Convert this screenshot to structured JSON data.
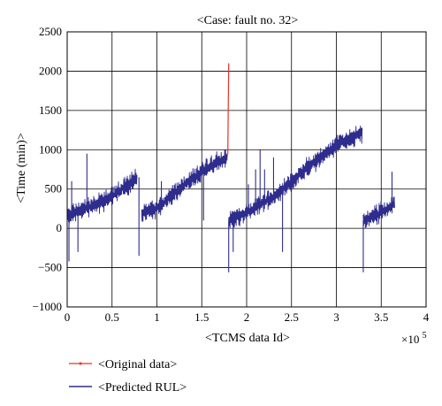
{
  "chart_data": {
    "type": "line",
    "title": "<Case: fault no. 32>",
    "xlabel": "<TCMS data Id>",
    "ylabel": "<Time (min)>",
    "x_multiplier_label": "×10",
    "x_multiplier_exp": "5",
    "xlim": [
      0,
      4
    ],
    "ylim": [
      -1000,
      2500
    ],
    "x_ticks": [
      0,
      0.5,
      1,
      1.5,
      2,
      2.5,
      3,
      3.5,
      4
    ],
    "x_tick_labels": [
      "0",
      "0.5",
      "1",
      "1.5",
      "2",
      "2.5",
      "3",
      "3.5",
      "4"
    ],
    "y_ticks": [
      -1000,
      -500,
      0,
      500,
      1000,
      1500,
      2000,
      2500
    ],
    "y_tick_labels": [
      "−1000",
      "−500",
      "0",
      "500",
      "1000",
      "1500",
      "2000",
      "2500"
    ],
    "grid": true,
    "legend_position": "bottom-left, below plot",
    "series": [
      {
        "name": "<Original data>",
        "color": "#e8312a",
        "segments": [
          {
            "x": [
              0.0,
              0.2,
              0.5,
              0.78
            ],
            "y": [
              150,
              250,
              400,
              650
            ]
          },
          {
            "x": [
              0.83,
              1.0,
              1.3,
              1.6,
              1.79
            ],
            "y": [
              200,
              250,
              550,
              800,
              950
            ]
          },
          {
            "x": [
              1.79,
              1.8
            ],
            "y": [
              950,
              2100
            ]
          },
          {
            "x": [
              1.8,
              2.0,
              2.3,
              2.7,
              3.0,
              3.29
            ],
            "y": [
              100,
              200,
              400,
              800,
              1050,
              1250
            ]
          },
          {
            "x": [
              3.3,
              3.5,
              3.65
            ],
            "y": [
              100,
              200,
              320
            ]
          }
        ]
      },
      {
        "name": "<Predicted RUL>",
        "color": "#2e2c8c",
        "segments": [
          {
            "x": [
              0.0,
              0.2,
              0.5,
              0.78
            ],
            "y": [
              150,
              250,
              400,
              650
            ]
          },
          {
            "x": [
              0.83,
              1.0,
              1.3,
              1.6,
              1.79
            ],
            "y": [
              200,
              250,
              550,
              800,
              900
            ]
          },
          {
            "x": [
              1.8,
              2.0,
              2.3,
              2.7,
              3.0,
              3.29
            ],
            "y": [
              100,
              200,
              400,
              800,
              1050,
              1230
            ]
          },
          {
            "x": [
              3.3,
              3.5,
              3.65
            ],
            "y": [
              100,
              200,
              320
            ]
          }
        ],
        "spikes": [
          {
            "x": 0.02,
            "y": -420
          },
          {
            "x": 0.05,
            "y": 600
          },
          {
            "x": 0.12,
            "y": -300
          },
          {
            "x": 0.22,
            "y": 950
          },
          {
            "x": 0.8,
            "y": -350
          },
          {
            "x": 1.05,
            "y": 600
          },
          {
            "x": 1.52,
            "y": 100
          },
          {
            "x": 1.8,
            "y": -560
          },
          {
            "x": 1.85,
            "y": -300
          },
          {
            "x": 2.02,
            "y": 560
          },
          {
            "x": 2.1,
            "y": 750
          },
          {
            "x": 2.15,
            "y": 1000
          },
          {
            "x": 2.2,
            "y": 750
          },
          {
            "x": 2.3,
            "y": 900
          },
          {
            "x": 2.4,
            "y": -300
          },
          {
            "x": 3.3,
            "y": -560
          },
          {
            "x": 3.62,
            "y": 720
          }
        ]
      }
    ]
  }
}
